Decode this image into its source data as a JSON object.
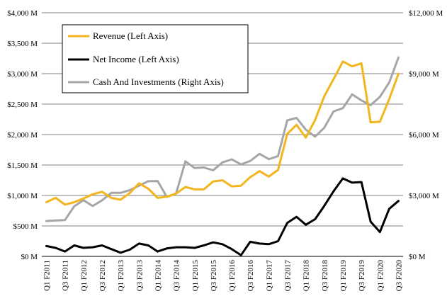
{
  "chart_data": {
    "type": "line",
    "x": [
      "Q1 F2011",
      "Q2 F2011",
      "Q3 F2011",
      "Q4 F2011",
      "Q1 F2012",
      "Q2 F2012",
      "Q3 F2012",
      "Q4 F2012",
      "Q1 F2013",
      "Q2 F2013",
      "Q3 F2013",
      "Q4 F2013",
      "Q1 F2014",
      "Q2 F2014",
      "Q3 F2014",
      "Q4 F2014",
      "Q1 F2015",
      "Q2 F2015",
      "Q3 F2015",
      "Q4 F2015",
      "Q1 F2016",
      "Q2 F2016",
      "Q3 F2016",
      "Q4 F2016",
      "Q1 F2017",
      "Q2 F2017",
      "Q3 F2017",
      "Q4 F2017",
      "Q1 F2018",
      "Q2 F2018",
      "Q3 F2018",
      "Q4 F2018",
      "Q1 F2019",
      "Q2 F2019",
      "Q3 F2019",
      "Q4 F2019",
      "Q1 F2020",
      "Q2 F2020",
      "Q3 F2020"
    ],
    "x_tick_labels": [
      "Q1 F2011",
      "Q3 F2011",
      "Q1 F2012",
      "Q3 F2012",
      "Q1 F2013",
      "Q3 F2013",
      "Q1 F2014",
      "Q3 F2014",
      "Q1 F2015",
      "Q3 F2015",
      "Q1 F2016",
      "Q3 F2016",
      "Q1 F2017",
      "Q3 F2017",
      "Q1 F2018",
      "Q3 F2018",
      "Q1 F2019",
      "Q3 F2019",
      "Q1 F2020",
      "Q3 F2020"
    ],
    "y_left": {
      "min": 0,
      "max": 4000,
      "step": 500,
      "tick_labels": [
        "$0 M",
        "$500 M",
        "$1,000 M",
        "$1,500 M",
        "$2,000 M",
        "$2,500 M",
        "$3,000 M",
        "$3,500 M",
        "$4,000 M"
      ]
    },
    "y_right": {
      "min": 0,
      "max": 12000,
      "step": 3000,
      "tick_labels": [
        "$0 M",
        "$3,000 M",
        "$6,000 M",
        "$9,000 M",
        "$12,000 M"
      ]
    },
    "grid": "horizontal",
    "legend_placement": "top-left",
    "series": [
      {
        "name": "Revenue (Left Axis)",
        "axis": "left",
        "color": "#F2B51D",
        "values": [
          890,
          960,
          850,
          890,
          950,
          1020,
          1060,
          960,
          930,
          1040,
          1200,
          1110,
          960,
          980,
          1030,
          1140,
          1100,
          1100,
          1230,
          1250,
          1150,
          1160,
          1300,
          1400,
          1310,
          1420,
          2010,
          2160,
          1950,
          2240,
          2630,
          2910,
          3200,
          3120,
          3170,
          2200,
          2210,
          2580,
          3000
        ]
      },
      {
        "name": "Net Income (Left Axis)",
        "axis": "left",
        "color": "#000000",
        "values": [
          170,
          140,
          80,
          180,
          140,
          150,
          180,
          120,
          60,
          110,
          210,
          180,
          80,
          130,
          150,
          150,
          140,
          180,
          230,
          200,
          120,
          20,
          240,
          210,
          200,
          250,
          550,
          650,
          520,
          610,
          830,
          1070,
          1280,
          1210,
          1220,
          570,
          400,
          780,
          910
        ]
      },
      {
        "name": "Cash And Investments (Right Axis)",
        "axis": "right",
        "color": "#A6A6A6",
        "values": [
          1740,
          1770,
          1790,
          2470,
          2770,
          2480,
          2760,
          3130,
          3130,
          3260,
          3480,
          3700,
          3710,
          2930,
          3100,
          4680,
          4350,
          4380,
          4240,
          4630,
          4780,
          4530,
          4700,
          5050,
          4790,
          4940,
          6700,
          6820,
          6240,
          5900,
          6340,
          7140,
          7300,
          7980,
          7680,
          7450,
          7860,
          8560,
          9800
        ]
      }
    ]
  }
}
